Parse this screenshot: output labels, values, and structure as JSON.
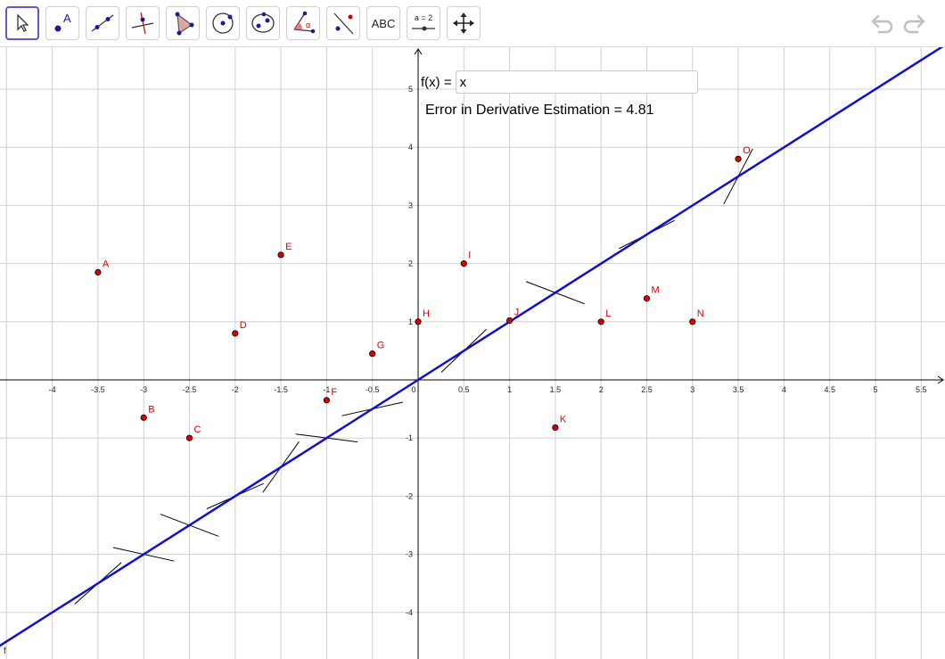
{
  "toolbar": {
    "tools": [
      {
        "name": "move-tool",
        "label": ""
      },
      {
        "name": "point-tool",
        "label": "A"
      },
      {
        "name": "line-tool",
        "label": ""
      },
      {
        "name": "perpendicular-tool",
        "label": ""
      },
      {
        "name": "polygon-tool",
        "label": ""
      },
      {
        "name": "circle-tool",
        "label": ""
      },
      {
        "name": "conic-tool",
        "label": ""
      },
      {
        "name": "angle-tool",
        "label": "α"
      },
      {
        "name": "reflect-tool",
        "label": ""
      },
      {
        "name": "text-tool",
        "label": "ABC"
      },
      {
        "name": "slider-tool",
        "label": "a = 2"
      },
      {
        "name": "move-graphics-tool",
        "label": ""
      }
    ],
    "selected": "move-tool"
  },
  "input": {
    "label": "f(x) =",
    "value": "x"
  },
  "error_text": "Error in Derivative Estimation = 4.81",
  "function_label": "f",
  "colors": {
    "function": "#1010d0",
    "point_fill": "#dd0000",
    "point_label": "#dd0000",
    "tangent": "#000000",
    "grid": "#d0d0d0",
    "axis": "#000000",
    "selected_tool": "#6557d2"
  },
  "chart_data": {
    "type": "scatter",
    "xlim": [
      -4.6,
      5.8
    ],
    "ylim": [
      -4.8,
      5.9
    ],
    "grid": true,
    "x_ticks": [
      "-4",
      "-3.5",
      "-3",
      "-2.5",
      "-2",
      "-1.5",
      "-1",
      "-0.5",
      "0",
      "0.5",
      "1",
      "1.5",
      "2",
      "2.5",
      "3",
      "3.5",
      "4",
      "4.5",
      "5",
      "5.5"
    ],
    "y_ticks": [
      "-4",
      "-3",
      "-2",
      "-1",
      "1",
      "2",
      "3",
      "4",
      "5"
    ],
    "function": {
      "name": "f",
      "expression": "x",
      "slope": 1
    },
    "points": [
      {
        "label": "A",
        "x": -3.5,
        "y": 1.85,
        "slope": 1
      },
      {
        "label": "B",
        "x": -3.0,
        "y": -0.65,
        "slope": -0.35
      },
      {
        "label": "C",
        "x": -2.5,
        "y": -1.0,
        "slope": -0.6
      },
      {
        "label": "D",
        "x": -2.0,
        "y": 0.8,
        "slope": 0.7
      },
      {
        "label": "E",
        "x": -1.5,
        "y": 2.15,
        "slope": 2.2
      },
      {
        "label": "F",
        "x": -1.0,
        "y": -0.35,
        "slope": -0.2
      },
      {
        "label": "G",
        "x": -0.5,
        "y": 0.45,
        "slope": 0.35
      },
      {
        "label": "H",
        "x": 0.0,
        "y": 1.0,
        "slope": 1.5
      },
      {
        "label": "I",
        "x": 0.5,
        "y": 2.0,
        "slope": -0.6
      },
      {
        "label": "J",
        "x": 1.0,
        "y": 1.02,
        "slope": 1
      },
      {
        "label": "K",
        "x": 1.5,
        "y": -0.82,
        "slope": 0.8
      },
      {
        "label": "L",
        "x": 2.0,
        "y": 1.0,
        "slope": 3.0
      },
      {
        "label": "M",
        "x": 2.5,
        "y": 1.4,
        "slope": 1
      },
      {
        "label": "N",
        "x": 3.0,
        "y": 1.0,
        "slope": 1
      },
      {
        "label": "O",
        "x": 3.5,
        "y": 3.8,
        "slope": 1
      }
    ],
    "tangent_segments": [
      {
        "x": -3.5,
        "y": -3.5,
        "slope": 1.4
      },
      {
        "x": -3.0,
        "y": -3.0,
        "slope": -0.35
      },
      {
        "x": -2.5,
        "y": -2.5,
        "slope": -0.6
      },
      {
        "x": -2.0,
        "y": -2.0,
        "slope": 0.7
      },
      {
        "x": -1.5,
        "y": -1.5,
        "slope": 2.2
      },
      {
        "x": -1.0,
        "y": -1.0,
        "slope": -0.2
      },
      {
        "x": -0.5,
        "y": -0.5,
        "slope": 0.35
      },
      {
        "x": 0.5,
        "y": 0.5,
        "slope": 1.5
      },
      {
        "x": 1.5,
        "y": 1.5,
        "slope": -0.6
      },
      {
        "x": 2.5,
        "y": 2.5,
        "slope": 0.8
      },
      {
        "x": 3.5,
        "y": 3.5,
        "slope": 3.0
      }
    ]
  }
}
